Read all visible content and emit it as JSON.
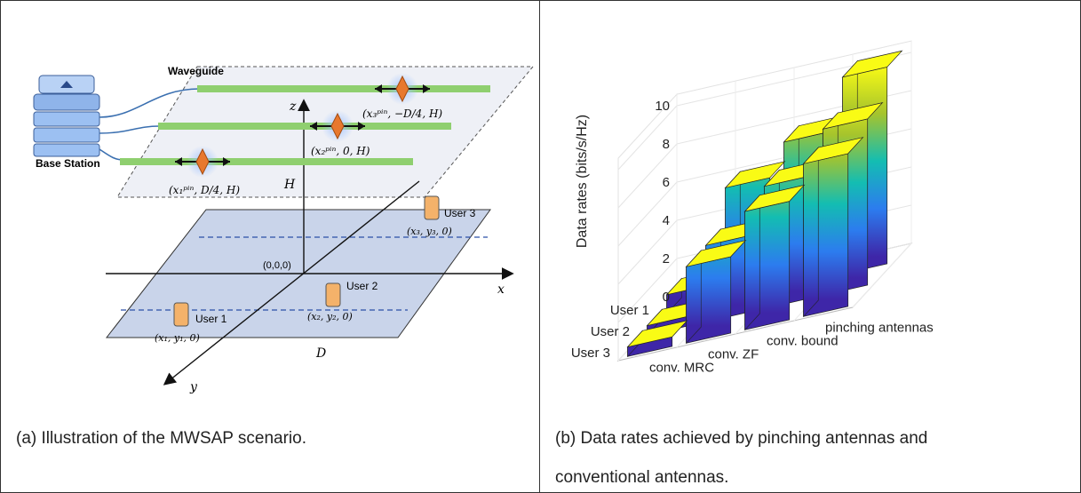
{
  "left_panel": {
    "caption": "(a) Illustration of the MWSAP scenario.",
    "labels": {
      "waveguide": "Waveguide",
      "base_station": "Base Station",
      "z": "z",
      "x": "x",
      "y": "y",
      "H": "H",
      "D": "D",
      "origin": "(0,0,0)",
      "user1": "User 1",
      "user2": "User 2",
      "user3": "User 3",
      "user1_coord": "(x₁, y₁, 0)",
      "user2_coord": "(x₂, y₂, 0)",
      "user3_coord": "(x₃, y₃, 0)",
      "pin1": "(x₁ᵖⁱⁿ, D/4, H)",
      "pin2": "(x₂ᵖⁱⁿ, 0, H)",
      "pin3": "(x₃ᵖⁱⁿ, −D/4, H)"
    },
    "colors": {
      "waveguide": "#8fcf6f",
      "pinch_antenna": "#e8782e",
      "ground_plane": "#c9d4ea",
      "top_plane": "#eef0f6",
      "user_phone": "#f4b26a",
      "dashed_blue": "#2b4fa8"
    }
  },
  "right_panel": {
    "caption_line1": "(b) Data rates achieved by pinching antennas and",
    "caption_line2": "conventional antennas.",
    "chart_data": {
      "type": "bar3d",
      "zlabel": "Data rates (bits/s/Hz)",
      "z_ticks": [
        "0",
        "2",
        "4",
        "6",
        "8",
        "10"
      ],
      "zlim": [
        0,
        10
      ],
      "users": [
        "User 1",
        "User 2",
        "User 3"
      ],
      "schemes": [
        "conv. MRC",
        "conv. ZF",
        "conv. bound",
        "pinching antennas"
      ],
      "series": [
        {
          "name": "conv. MRC",
          "values": [
            1.0,
            0.5,
            0.5
          ]
        },
        {
          "name": "conv. ZF",
          "values": [
            5.9,
            4.0,
            4.0
          ]
        },
        {
          "name": "conv. bound",
          "values": [
            7.6,
            6.4,
            6.2
          ]
        },
        {
          "name": "pinching antennas",
          "values": [
            10.3,
            8.7,
            8.0
          ]
        }
      ],
      "colormap": "parula",
      "grid": true
    }
  }
}
